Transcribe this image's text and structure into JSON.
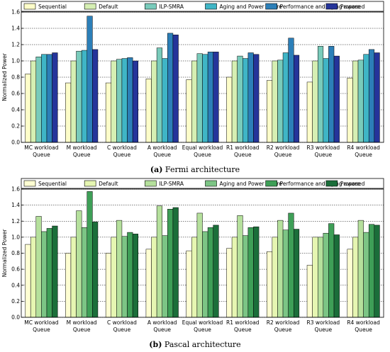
{
  "figure": {
    "caption_a_label": "(a)",
    "caption_a_text": "Fermi architecture",
    "caption_b_label": "(b)",
    "caption_b_text": "Pascal architecture"
  },
  "chart_data": [
    {
      "type": "bar",
      "title": "",
      "xlabel": "",
      "ylabel": "Normalized Power",
      "ylim": [
        0,
        1.6
      ],
      "yticks": [
        "0.0",
        "0.2",
        "0.4",
        "0.6",
        "0.8",
        "1.0",
        "1.2",
        "1.4",
        "1.6"
      ],
      "grid": true,
      "legend_position": "top",
      "categories": [
        [
          "MC workload",
          "Queue"
        ],
        [
          "M workload",
          "Queue"
        ],
        [
          "C workload",
          "Queue"
        ],
        [
          "A workload",
          "Queue"
        ],
        [
          "Equal workload",
          "Queue"
        ],
        [
          "R1 workload",
          "Queue"
        ],
        [
          "R2 workload",
          "Queue"
        ],
        [
          "R3 workload",
          "Queue"
        ],
        [
          "R4 workload",
          "Queue"
        ]
      ],
      "series": [
        {
          "name": "Sequential",
          "color": "#fdfdc9",
          "values": [
            0.84,
            0.73,
            0.73,
            0.78,
            0.77,
            0.8,
            0.76,
            0.74,
            0.79
          ]
        },
        {
          "name": "Default",
          "color": "#d6efb3",
          "values": [
            1.0,
            1.0,
            1.0,
            1.0,
            1.0,
            1.0,
            1.0,
            1.0,
            1.0
          ]
        },
        {
          "name": "ILP-SMRA",
          "color": "#79cbbb",
          "values": [
            1.05,
            1.12,
            1.02,
            1.16,
            1.09,
            1.06,
            1.01,
            1.18,
            1.01
          ]
        },
        {
          "name": "Aging and Power aware",
          "color": "#3fb5c6",
          "values": [
            1.08,
            1.13,
            1.03,
            1.03,
            1.08,
            1.03,
            1.1,
            1.03,
            1.08
          ]
        },
        {
          "name": "Performance and Aging aware",
          "color": "#2c7fb8",
          "values": [
            1.08,
            1.55,
            1.04,
            1.34,
            1.11,
            1.1,
            1.28,
            1.18,
            1.14
          ]
        },
        {
          "name": "Proposed",
          "color": "#25349a",
          "values": [
            1.1,
            1.14,
            1.0,
            1.32,
            1.11,
            1.08,
            1.07,
            1.06,
            1.1
          ]
        }
      ]
    },
    {
      "type": "bar",
      "title": "",
      "xlabel": "",
      "ylabel": "Normalized Power",
      "ylim": [
        0,
        1.6
      ],
      "yticks": [
        "0.0",
        "0.2",
        "0.4",
        "0.6",
        "0.8",
        "1.0",
        "1.2",
        "1.4",
        "1.6"
      ],
      "grid": true,
      "legend_position": "top",
      "categories": [
        [
          "MC workload",
          "Queue"
        ],
        [
          "M workload",
          "Queue"
        ],
        [
          "C workload",
          "Queue"
        ],
        [
          "A workload",
          "Queue"
        ],
        [
          "Equal workload",
          "Queue"
        ],
        [
          "R1 workload",
          "Queue"
        ],
        [
          "R2 workload",
          "Queue"
        ],
        [
          "R3 workload",
          "Queue"
        ],
        [
          "R4 workload",
          "Queue"
        ]
      ],
      "series": [
        {
          "name": "Sequential",
          "color": "#fefed2",
          "values": [
            0.91,
            0.8,
            0.8,
            0.85,
            0.83,
            0.86,
            0.82,
            0.65,
            0.85
          ]
        },
        {
          "name": "Default",
          "color": "#e6f6b2",
          "values": [
            1.0,
            1.0,
            1.0,
            1.0,
            1.0,
            1.0,
            1.0,
            1.0,
            1.0
          ]
        },
        {
          "name": "ILP-SMRA",
          "color": "#b5e09c",
          "values": [
            1.26,
            1.33,
            1.21,
            1.39,
            1.3,
            1.27,
            1.21,
            1.0,
            1.21
          ]
        },
        {
          "name": "Aging and Power aware",
          "color": "#7cc585",
          "values": [
            1.07,
            1.12,
            1.01,
            1.02,
            1.07,
            1.02,
            1.09,
            1.05,
            1.06
          ]
        },
        {
          "name": "Performance and Aging aware",
          "color": "#3e9f57",
          "values": [
            1.11,
            1.57,
            1.06,
            1.35,
            1.12,
            1.12,
            1.3,
            1.17,
            1.16
          ]
        },
        {
          "name": "Proposed",
          "color": "#1b6e3a",
          "values": [
            1.14,
            1.19,
            1.04,
            1.37,
            1.15,
            1.13,
            1.1,
            1.03,
            1.15
          ]
        }
      ]
    }
  ]
}
